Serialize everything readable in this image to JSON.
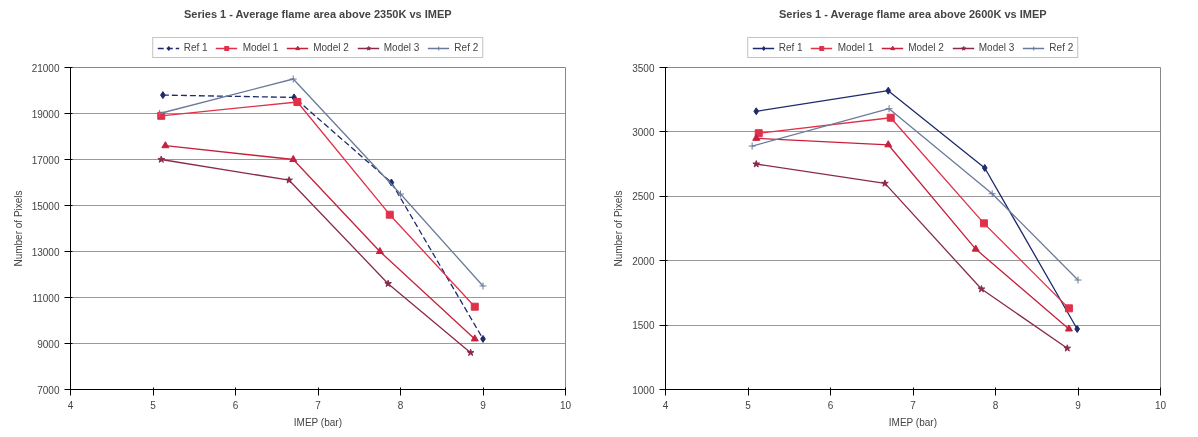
{
  "chart_data": [
    {
      "type": "line",
      "title": "Series 1 - Average flame area above 2350K vs IMEP",
      "xlabel": "IMEP (bar)",
      "ylabel": "Number of Pixels",
      "xlim": [
        4,
        10
      ],
      "xticks": [
        4,
        5,
        6,
        7,
        8,
        9,
        10
      ],
      "ylim": [
        7000,
        21000
      ],
      "yticks": [
        7000,
        9000,
        11000,
        13000,
        15000,
        17000,
        19000,
        21000
      ],
      "grid": "y",
      "legend": "top",
      "series": [
        {
          "name": "Ref 1",
          "color": "#1f2a6b",
          "marker": "diamond",
          "line_style": "dashed",
          "x": [
            5.12,
            6.71,
            7.89,
            9.0
          ],
          "values": [
            19800,
            19700,
            16000,
            9200
          ]
        },
        {
          "name": "Model 1",
          "color": "#e0304a",
          "marker": "square",
          "x": [
            5.1,
            6.75,
            7.87,
            8.9
          ],
          "values": [
            18900,
            19500,
            14600,
            10600
          ]
        },
        {
          "name": "Model 2",
          "color": "#c8203c",
          "marker": "triangle",
          "x": [
            5.15,
            6.7,
            7.75,
            8.9
          ],
          "values": [
            17600,
            17000,
            13000,
            9200
          ]
        },
        {
          "name": "Model 3",
          "color": "#8a2a4a",
          "marker": "star",
          "x": [
            5.1,
            6.65,
            7.85,
            8.85
          ],
          "values": [
            17000,
            16100,
            11600,
            8600
          ]
        },
        {
          "name": "Ref 2",
          "color": "#6a7a9a",
          "marker": "cross",
          "x": [
            5.08,
            6.7,
            8.0,
            9.0
          ],
          "values": [
            19000,
            20500,
            15500,
            11500
          ]
        }
      ]
    },
    {
      "type": "line",
      "title": "Series 1 - Average flame area above 2600K vs IMEP",
      "xlabel": "IMEP (bar)",
      "ylabel": "Number of Pixels",
      "xlim": [
        4,
        10
      ],
      "xticks": [
        4,
        5,
        6,
        7,
        8,
        9,
        10
      ],
      "ylim": [
        1000,
        3500
      ],
      "yticks": [
        1000,
        1500,
        2000,
        2500,
        3000,
        3500
      ],
      "grid": "y",
      "legend": "top",
      "series": [
        {
          "name": "Ref 1",
          "color": "#1f2a6b",
          "marker": "diamond",
          "x": [
            5.1,
            6.7,
            7.87,
            8.99
          ],
          "values": [
            3160,
            3320,
            2720,
            1470
          ]
        },
        {
          "name": "Model 1",
          "color": "#e0304a",
          "marker": "square",
          "x": [
            5.13,
            6.73,
            7.86,
            8.89
          ],
          "values": [
            2990,
            3110,
            2290,
            1630
          ]
        },
        {
          "name": "Model 2",
          "color": "#c8203c",
          "marker": "triangle",
          "x": [
            5.1,
            6.7,
            7.76,
            8.89
          ],
          "values": [
            2950,
            2900,
            2090,
            1470
          ]
        },
        {
          "name": "Model 3",
          "color": "#8a2a4a",
          "marker": "star",
          "x": [
            5.1,
            6.66,
            7.83,
            8.87
          ],
          "values": [
            2750,
            2600,
            1780,
            1320
          ]
        },
        {
          "name": "Ref 2",
          "color": "#6a7a9a",
          "marker": "cross",
          "x": [
            5.05,
            6.71,
            7.96,
            9.0
          ],
          "values": [
            2890,
            3180,
            2520,
            1850
          ]
        }
      ]
    }
  ]
}
